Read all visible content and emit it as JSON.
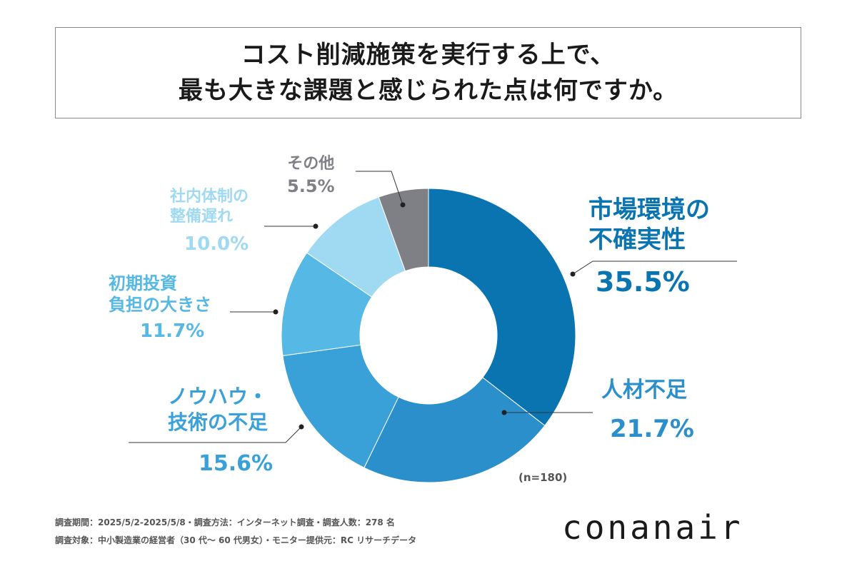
{
  "title": {
    "line1": "コスト削減施策を実行する上で、",
    "line2": "最も大きな課題と感じられた点は何ですか。"
  },
  "chart_data": {
    "type": "pie",
    "donut": true,
    "categories": [
      "市場環境の不確実性",
      "人材不足",
      "ノウハウ・技術の不足",
      "初期投資負担の大きさ",
      "社内体制の整備遅れ",
      "その他"
    ],
    "values": [
      35.5,
      21.7,
      15.6,
      11.7,
      10.0,
      5.5
    ],
    "labels": [
      {
        "name_lines": [
          "市場環境の",
          "不確実性"
        ],
        "pct": "35.5%",
        "color": "#0a74b1"
      },
      {
        "name_lines": [
          "人材不足"
        ],
        "pct": "21.7%",
        "color": "#2b8fcc"
      },
      {
        "name_lines": [
          "ノウハウ・",
          "技術の不足"
        ],
        "pct": "15.6%",
        "color": "#3aa0d8"
      },
      {
        "name_lines": [
          "初期投資",
          "負担の大きさ"
        ],
        "pct": "11.7%",
        "color": "#55b8e5"
      },
      {
        "name_lines": [
          "社内体制の",
          "整備遅れ"
        ],
        "pct": "10.0%",
        "color": "#9fd9f2"
      },
      {
        "name_lines": [
          "その他"
        ],
        "pct": "5.5%",
        "color": "#7f7f86"
      }
    ],
    "n_label": "(n=180)"
  },
  "footer": {
    "line1": "調査期間：2025/5/2-2025/5/8・調査方法：インターネット調査・調査人数：278 名",
    "line2": "調査対象：中小製造業の経営者（30 代～ 60 代男女）・モニター提供元：RC リサーチデータ"
  },
  "logo": "conanair"
}
